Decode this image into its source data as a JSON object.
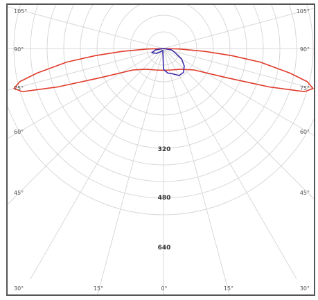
{
  "chart_data": {
    "type": "polar",
    "title": "",
    "grid": true,
    "radial_ticks": [
      "320",
      "480",
      "640"
    ],
    "radial_values": [
      320,
      480,
      640
    ],
    "radial_range": [
      0,
      800
    ],
    "left_tick_labels": [
      "105°",
      "90°",
      "75°",
      "60°",
      "45°",
      "30°"
    ],
    "right_tick_labels": [
      "105°",
      "90°",
      "75°",
      "60°",
      "45°",
      "30°"
    ],
    "bottom_tick_labels": [
      "30°",
      "15°",
      "0°",
      "15°",
      "30°"
    ],
    "colors": {
      "frame": "#555555",
      "grid": "#d8d8d8",
      "text": "#333333"
    },
    "series": [
      {
        "color": "#e03a2a",
        "points": [
          {
            "angle": -89,
            "value": 0
          },
          {
            "angle": -88,
            "value": 80
          },
          {
            "angle": -86,
            "value": 200
          },
          {
            "angle": -84,
            "value": 330
          },
          {
            "angle": -82,
            "value": 470
          },
          {
            "angle": -79,
            "value": 620
          },
          {
            "angle": -77,
            "value": 710
          },
          {
            "angle": -75,
            "value": 745
          },
          {
            "angle": -73,
            "value": 710
          },
          {
            "angle": -70,
            "value": 540
          },
          {
            "angle": -65,
            "value": 330
          },
          {
            "angle": -55,
            "value": 180
          },
          {
            "angle": -40,
            "value": 130
          },
          {
            "angle": -20,
            "value": 110
          },
          {
            "angle": 0,
            "value": 105
          },
          {
            "angle": 20,
            "value": 110
          },
          {
            "angle": 40,
            "value": 130
          },
          {
            "angle": 55,
            "value": 180
          },
          {
            "angle": 65,
            "value": 330
          },
          {
            "angle": 70,
            "value": 540
          },
          {
            "angle": 73,
            "value": 710
          },
          {
            "angle": 75,
            "value": 745
          },
          {
            "angle": 77,
            "value": 710
          },
          {
            "angle": 79,
            "value": 620
          },
          {
            "angle": 82,
            "value": 470
          },
          {
            "angle": 84,
            "value": 330
          },
          {
            "angle": 86,
            "value": 200
          },
          {
            "angle": 88,
            "value": 80
          },
          {
            "angle": 89,
            "value": 0
          }
        ]
      },
      {
        "color": "#3a2aa8",
        "points": [
          {
            "angle": -89,
            "value": 0
          },
          {
            "angle": -80,
            "value": 40
          },
          {
            "angle": -70,
            "value": 60
          },
          {
            "angle": -55,
            "value": 40
          },
          {
            "angle": -40,
            "value": 20
          },
          {
            "angle": -20,
            "value": 10
          },
          {
            "angle": 0,
            "value": 100
          },
          {
            "angle": 10,
            "value": 120
          },
          {
            "angle": 20,
            "value": 130
          },
          {
            "angle": 30,
            "value": 150
          },
          {
            "angle": 40,
            "value": 150
          },
          {
            "angle": 50,
            "value": 130
          },
          {
            "angle": 60,
            "value": 100
          },
          {
            "angle": 70,
            "value": 60
          },
          {
            "angle": 80,
            "value": 40
          },
          {
            "angle": 89,
            "value": 0
          }
        ]
      }
    ]
  }
}
